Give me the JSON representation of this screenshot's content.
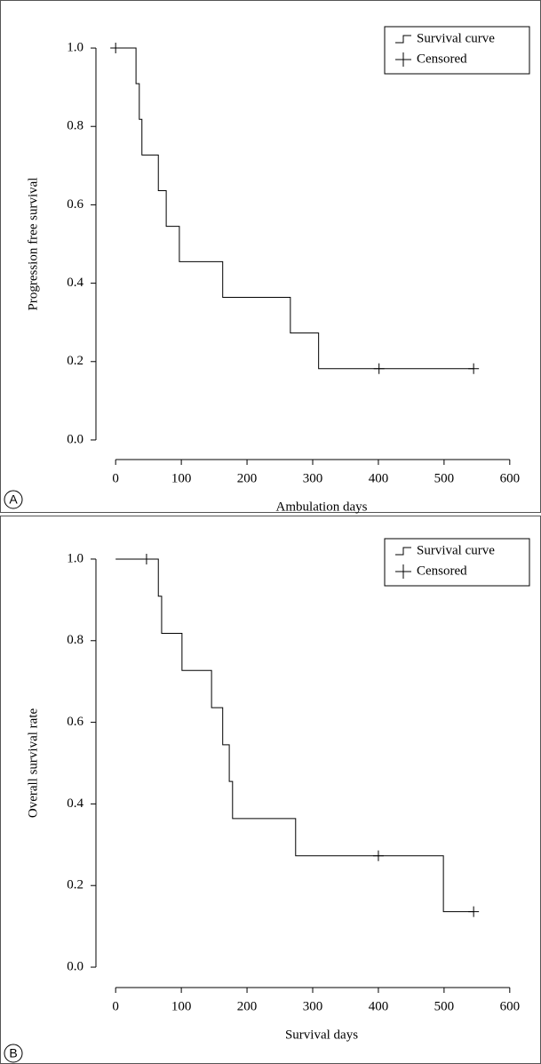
{
  "chart_data": [
    {
      "type": "step",
      "panel": "A",
      "x_label": "Ambulation days",
      "y_label": "Progression free survival",
      "xlim": [
        -30,
        630
      ],
      "ylim": [
        -0.05,
        1.05
      ],
      "xticks": [
        0,
        100,
        200,
        300,
        400,
        500,
        600
      ],
      "yticks": [
        {
          "value": 0,
          "label": "0.0"
        },
        {
          "value": 0.2,
          "label": "0.2"
        },
        {
          "value": 0.4,
          "label": "0.4"
        },
        {
          "value": 0.6,
          "label": "0.6"
        },
        {
          "value": 0.8,
          "label": "0.8"
        },
        {
          "value": 1,
          "label": "1.0"
        }
      ],
      "legend": "top-right",
      "series": [
        {
          "name": "Survival curve",
          "color": "#000000",
          "x": [
            0,
            31,
            36,
            40,
            65,
            77,
            97,
            163,
            266,
            309,
            545
          ],
          "values": [
            1,
            0.909,
            0.818,
            0.727,
            0.636,
            0.545,
            0.455,
            0.364,
            0.273,
            0.182,
            0.182
          ]
        },
        {
          "name": "Censored",
          "color": "#000000",
          "x": [
            0,
            401,
            545
          ],
          "values": [
            1,
            0.182,
            0.182
          ]
        }
      ]
    },
    {
      "type": "step",
      "panel": "B",
      "x_label": "Survival days",
      "y_label": "Overall survival rate",
      "xlim": [
        -30,
        630
      ],
      "ylim": [
        -0.05,
        1.05
      ],
      "xticks": [
        0,
        100,
        200,
        300,
        400,
        500,
        600
      ],
      "yticks": [
        {
          "value": 0,
          "label": "0.0"
        },
        {
          "value": 0.2,
          "label": "0.2"
        },
        {
          "value": 0.4,
          "label": "0.4"
        },
        {
          "value": 0.6,
          "label": "0.6"
        },
        {
          "value": 0.8,
          "label": "0.8"
        },
        {
          "value": 1,
          "label": "1.0"
        }
      ],
      "legend": "top-right",
      "series": [
        {
          "name": "Survival curve",
          "color": "#000000",
          "x": [
            0,
            65,
            70,
            101,
            146,
            163,
            173,
            178,
            274,
            499,
            545
          ],
          "values": [
            1,
            0.909,
            0.818,
            0.727,
            0.636,
            0.545,
            0.455,
            0.364,
            0.273,
            0.136,
            0.136
          ]
        },
        {
          "name": "Censored",
          "color": "#000000",
          "x": [
            47,
            400,
            545
          ],
          "values": [
            1,
            0.273,
            0.136
          ]
        }
      ]
    }
  ]
}
